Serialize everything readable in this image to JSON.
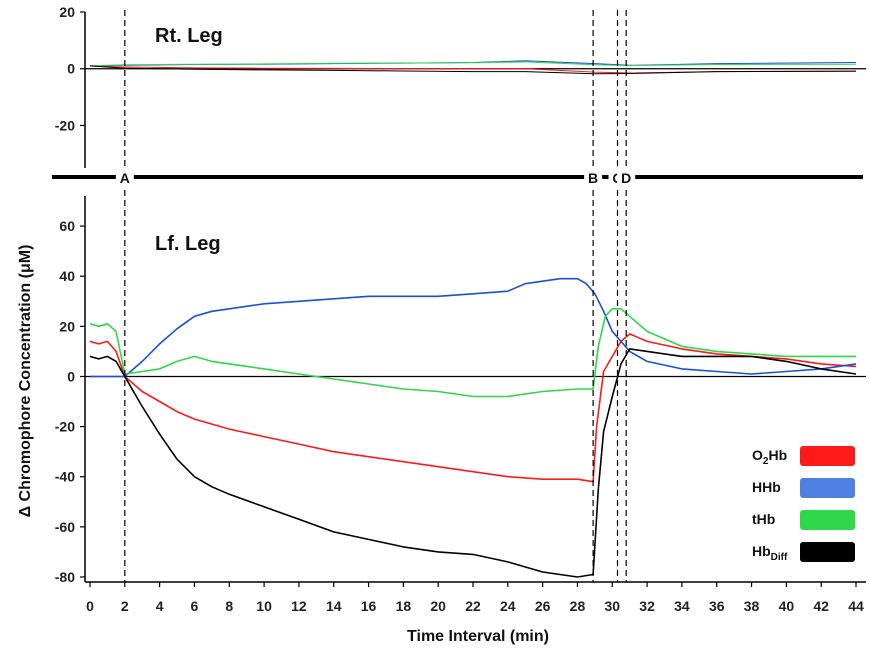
{
  "chart_data": [
    {
      "type": "line",
      "title": "Rt. Leg",
      "ylim": [
        -35,
        20
      ],
      "y_ticks": [
        "20",
        "0",
        "-20"
      ],
      "series": [
        {
          "name": "O2Hb",
          "color": "#ff1a1a",
          "x": [
            0,
            2,
            6,
            10,
            14,
            18,
            22,
            25,
            29,
            31,
            36,
            44
          ],
          "y": [
            1,
            0.6,
            0.3,
            0.2,
            0.1,
            0,
            0,
            0,
            -1.2,
            -1.5,
            -1,
            -0.8
          ]
        },
        {
          "name": "HHb",
          "color": "#1a4fd6",
          "x": [
            0,
            2,
            6,
            10,
            14,
            18,
            22,
            25,
            29,
            31,
            36,
            44
          ],
          "y": [
            1,
            1.2,
            1.5,
            1.6,
            1.8,
            2,
            2.2,
            2.8,
            1.8,
            1.2,
            1.8,
            2.2
          ]
        },
        {
          "name": "tHb",
          "color": "#2ed84a",
          "x": [
            0,
            2,
            6,
            10,
            14,
            18,
            22,
            25,
            29,
            31,
            36,
            44
          ],
          "y": [
            1,
            1.4,
            1.6,
            1.7,
            1.9,
            2,
            2.1,
            2.4,
            1.4,
            1.1,
            1.5,
            1.6
          ]
        },
        {
          "name": "HbDiff",
          "color": "#000000",
          "x": [
            0,
            2,
            6,
            10,
            14,
            18,
            22,
            25,
            29,
            31,
            36,
            44
          ],
          "y": [
            1,
            0.2,
            -0.2,
            -0.4,
            -0.6,
            -0.8,
            -1,
            -1,
            -1.8,
            -1.7,
            -1,
            -0.9
          ]
        }
      ]
    },
    {
      "type": "line",
      "title": "Lf. Leg",
      "ylim": [
        -82,
        72
      ],
      "y_ticks": [
        "60",
        "40",
        "20",
        "0",
        "-20",
        "-40",
        "-60",
        "-80"
      ],
      "series": [
        {
          "name": "O2Hb",
          "color": "#ff1a1a",
          "x": [
            0,
            0.5,
            1,
            1.5,
            2,
            3,
            4,
            5,
            6,
            7,
            8,
            10,
            12,
            14,
            16,
            18,
            20,
            22,
            24,
            26,
            28,
            28.9,
            29.1,
            29.5,
            30,
            30.5,
            31,
            32,
            34,
            36,
            38,
            40,
            42,
            44
          ],
          "y": [
            14,
            13,
            14,
            10,
            0,
            -6,
            -10,
            -14,
            -17,
            -19,
            -21,
            -24,
            -27,
            -30,
            -32,
            -34,
            -36,
            -38,
            -40,
            -41,
            -41,
            -42,
            -20,
            2,
            8,
            14,
            17,
            14,
            11,
            9,
            8,
            7,
            5,
            4
          ]
        },
        {
          "name": "HHb",
          "color": "#1a4fd6",
          "x": [
            0,
            1,
            1.5,
            2,
            3,
            4,
            5,
            6,
            7,
            8,
            10,
            12,
            14,
            16,
            18,
            20,
            22,
            24,
            25,
            26,
            27,
            28,
            28.5,
            29,
            29.5,
            30,
            31,
            32,
            34,
            36,
            38,
            40,
            42,
            44
          ],
          "y": [
            0,
            0,
            0,
            0,
            6,
            13,
            19,
            24,
            26,
            27,
            29,
            30,
            31,
            32,
            32,
            32,
            33,
            34,
            37,
            38,
            39,
            39,
            37,
            33,
            26,
            18,
            10,
            6,
            3,
            2,
            1,
            2,
            3,
            5
          ]
        },
        {
          "name": "tHb",
          "color": "#2ed84a",
          "x": [
            0,
            0.5,
            1,
            1.5,
            2,
            3,
            4,
            5,
            6,
            7,
            8,
            10,
            12,
            14,
            16,
            18,
            20,
            22,
            24,
            26,
            28,
            28.9,
            29.2,
            29.6,
            30,
            30.5,
            31,
            32,
            34,
            36,
            38,
            40,
            42,
            44
          ],
          "y": [
            21,
            20,
            21,
            18,
            1,
            2,
            3,
            6,
            8,
            6,
            5,
            3,
            1,
            -1,
            -3,
            -5,
            -6,
            -8,
            -8,
            -6,
            -5,
            -5,
            12,
            24,
            27,
            27,
            24,
            18,
            12,
            10,
            9,
            8,
            8,
            8
          ]
        },
        {
          "name": "HbDiff",
          "color": "#000000",
          "x": [
            0,
            0.5,
            1,
            1.5,
            2,
            3,
            4,
            5,
            6,
            7,
            8,
            10,
            12,
            14,
            16,
            18,
            20,
            22,
            24,
            26,
            28,
            28.9,
            29.2,
            29.5,
            30,
            30.5,
            31,
            32,
            34,
            36,
            38,
            40,
            42,
            44
          ],
          "y": [
            8,
            7,
            8,
            6,
            0,
            -12,
            -23,
            -33,
            -40,
            -44,
            -47,
            -52,
            -57,
            -62,
            -65,
            -68,
            -70,
            -71,
            -74,
            -78,
            -80,
            -79,
            -45,
            -22,
            -8,
            5,
            11,
            10,
            8,
            8,
            8,
            6,
            3,
            1
          ]
        }
      ]
    }
  ],
  "axes": {
    "ylabel": "Δ Chromophore Concentration (μM)",
    "xlabel": "Time Interval (min)",
    "xlim": [
      0,
      44
    ],
    "x_ticks": [
      "0",
      "2",
      "4",
      "6",
      "8",
      "10",
      "12",
      "14",
      "16",
      "18",
      "20",
      "22",
      "24",
      "26",
      "28",
      "30",
      "32",
      "34",
      "36",
      "38",
      "40",
      "42",
      "44"
    ]
  },
  "markers": [
    {
      "label": "A",
      "x": 2
    },
    {
      "label": "B",
      "x": 28.9
    },
    {
      "label": "C",
      "x": 30.3
    },
    {
      "label": "D",
      "x": 30.8
    }
  ],
  "legend": {
    "position": "bottom-right",
    "items": [
      {
        "label": "O2Hb",
        "color": "#ff1a1a"
      },
      {
        "label": "HHb",
        "color": "#4f7fe0"
      },
      {
        "label": "tHb",
        "color": "#2ed84a"
      },
      {
        "label": "HbDiff",
        "color": "#000000"
      }
    ]
  }
}
